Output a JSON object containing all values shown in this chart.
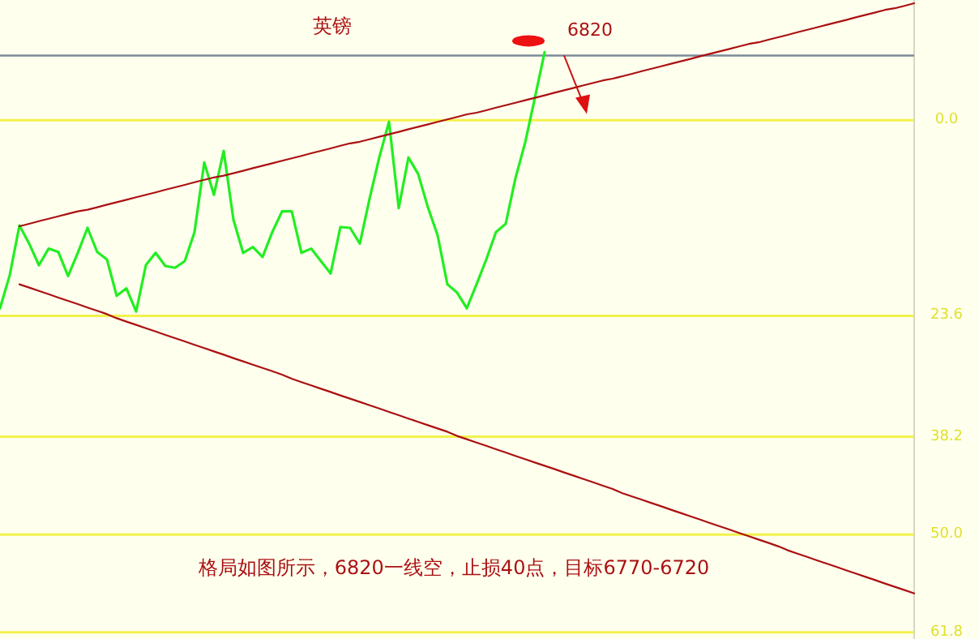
{
  "chart_data": {
    "type": "line",
    "title": "英镑",
    "annotations": [
      "6820",
      "格局如图所示，6820一线空，止损40点，目标6770-6720"
    ],
    "categories": [
      null,
      null,
      null,
      null,
      null,
      null,
      null,
      null,
      null,
      null,
      null,
      null,
      null,
      null,
      null,
      null,
      null,
      null,
      null,
      null,
      null,
      null,
      null,
      null,
      null,
      null,
      null,
      null,
      null,
      null,
      null,
      null,
      null,
      null,
      null,
      null,
      null,
      null,
      null,
      null,
      null,
      null,
      null,
      null,
      null,
      null,
      null,
      null,
      null,
      null,
      null,
      null,
      null,
      null,
      null,
      null,
      null,
      null,
      null,
      null,
      null,
      null,
      null,
      null,
      null,
      null,
      null,
      null,
      null,
      null,
      null,
      null,
      null,
      null,
      null,
      null,
      null,
      null,
      null,
      null,
      null,
      null,
      null,
      null,
      null,
      null,
      null,
      null,
      null,
      null,
      null,
      null,
      null,
      null,
      null
    ],
    "ylim": [
      62.6,
      -14.5
    ],
    "yticks": [
      {
        "value": 0,
        "label": "0.0"
      },
      23.6,
      38.2,
      {
        "value": 50,
        "label": "50.0"
      },
      61.8
    ],
    "grid": "y",
    "ref_lines": [
      {
        "axis": "y",
        "value": -7.8,
        "color": "#7a8a99"
      }
    ],
    "series": [
      {
        "color": "#22ee22",
        "values": [
          22.7,
          18.7,
          12.7,
          14.9,
          17.5,
          15.5,
          15.9,
          18.8,
          16.0,
          13.0,
          15.9,
          16.8,
          21.2,
          20.3,
          23.1,
          17.5,
          16.0,
          17.6,
          17.8,
          17.0,
          13.5,
          5.1,
          9.0,
          3.7,
          12.0,
          16.0,
          15.3,
          16.5,
          13.5,
          11.0,
          11.0,
          16.0,
          15.5,
          17.0,
          18.5,
          12.9,
          13.0,
          14.9,
          9.5,
          4.5,
          0.2,
          10.6,
          4.5,
          6.5,
          10.5,
          13.9,
          19.8,
          20.8,
          22.7,
          19.8,
          16.8,
          13.5,
          12.5,
          7.0,
          2.7,
          -2.7,
          -8.2,
          null,
          null,
          null,
          null,
          null,
          null,
          null,
          null,
          null,
          null,
          null,
          null,
          null,
          null,
          null,
          null,
          null,
          null,
          null,
          null,
          null,
          null,
          null,
          null,
          null,
          null,
          null,
          null,
          null,
          null,
          null,
          null,
          null,
          null,
          null,
          null,
          null,
          null
        ]
      },
      {
        "color": "#aa1111",
        "values": [
          null,
          null,
          12.8,
          12.5,
          12.2,
          11.9,
          11.6,
          11.3,
          11.0,
          10.8,
          10.5,
          10.2,
          9.9,
          9.6,
          9.3,
          9.0,
          8.7,
          8.4,
          8.1,
          7.8,
          7.5,
          7.2,
          6.9,
          6.7,
          6.4,
          6.1,
          5.8,
          5.5,
          5.2,
          4.9,
          4.6,
          4.3,
          4.0,
          3.7,
          3.4,
          3.1,
          2.8,
          2.6,
          2.3,
          2.0,
          1.7,
          1.4,
          1.1,
          0.8,
          0.5,
          0.2,
          -0.1,
          -0.4,
          -0.7,
          -0.9,
          -1.2,
          -1.5,
          -1.8,
          -2.1,
          -2.4,
          -2.7,
          -3.0,
          -3.3,
          -3.6,
          -3.9,
          -4.2,
          -4.5,
          -4.8,
          -5.0,
          -5.3,
          -5.6,
          -5.9,
          -6.2,
          -6.5,
          -6.8,
          -7.1,
          -7.4,
          -7.7,
          -8.0,
          -8.3,
          -8.6,
          -8.9,
          -9.2,
          -9.4,
          -9.7,
          -10.0,
          -10.3,
          -10.6,
          -10.9,
          -11.2,
          -11.5,
          -11.8,
          -12.1,
          -12.4,
          -12.7,
          -13.0,
          -13.3,
          -13.5,
          -13.8,
          -14.1
        ]
      },
      {
        "color": "#aa1111",
        "values": [
          null,
          null,
          19.8,
          20.2,
          20.6,
          21.0,
          21.4,
          21.8,
          22.2,
          22.6,
          23.0,
          23.4,
          23.9,
          24.3,
          24.7,
          25.1,
          25.5,
          25.9,
          26.3,
          26.7,
          27.1,
          27.5,
          27.9,
          28.3,
          28.7,
          29.1,
          29.5,
          29.9,
          30.3,
          30.7,
          31.2,
          31.6,
          32.0,
          32.4,
          32.8,
          33.2,
          33.6,
          34.0,
          34.4,
          34.8,
          35.2,
          35.6,
          36.0,
          36.4,
          36.8,
          37.2,
          37.6,
          38.1,
          38.5,
          38.9,
          39.3,
          39.7,
          40.1,
          40.5,
          40.9,
          41.3,
          41.7,
          42.1,
          42.5,
          42.9,
          43.3,
          43.7,
          44.1,
          44.5,
          45.0,
          45.4,
          45.8,
          46.2,
          46.6,
          47.0,
          47.4,
          47.8,
          48.2,
          48.6,
          49.0,
          49.4,
          49.8,
          50.2,
          50.6,
          51.0,
          51.4,
          51.9,
          52.3,
          52.7,
          53.1,
          53.5,
          53.9,
          54.3,
          54.7,
          55.1,
          55.5,
          55.9,
          56.3,
          56.7,
          57.1
        ]
      }
    ]
  }
}
